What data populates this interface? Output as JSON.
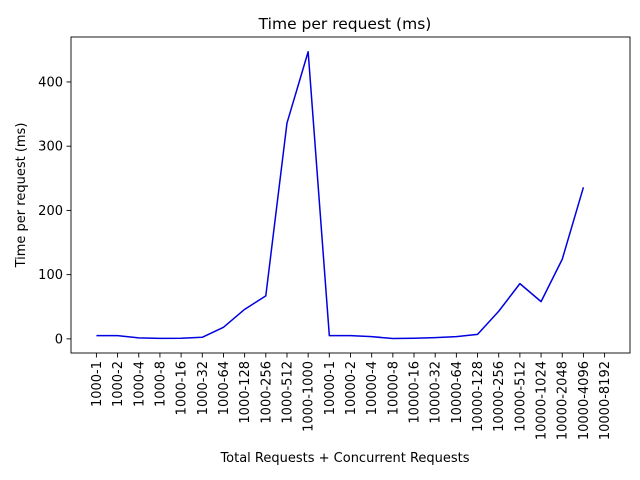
{
  "chart_data": {
    "type": "line",
    "title": "Time per request (ms)",
    "xlabel": "Total Requests + Concurrent Requests",
    "ylabel": "Time per request (ms)",
    "categories": [
      "1000-1",
      "1000-2",
      "1000-4",
      "1000-8",
      "1000-16",
      "1000-32",
      "1000-64",
      "1000-128",
      "1000-256",
      "1000-512",
      "1000-1000",
      "10000-1",
      "10000-2",
      "10000-4",
      "10000-8",
      "10000-16",
      "10000-32",
      "10000-64",
      "10000-128",
      "10000-256",
      "10000-512",
      "10000-1024",
      "10000-2048",
      "10000-4096",
      "10000-8192"
    ],
    "series": [
      {
        "color": "#0000e0",
        "values": [
          5,
          5,
          1.5,
          0.8,
          1,
          2.5,
          18,
          46,
          67,
          336,
          447,
          5,
          5,
          3.5,
          0.5,
          1,
          2,
          3.5,
          7,
          43,
          86,
          58,
          124,
          236,
          null
        ]
      }
    ],
    "ylim": [
      -22,
      470
    ],
    "yticks": [
      0,
      100,
      200,
      300,
      400
    ],
    "grid": false,
    "legend": "none"
  }
}
